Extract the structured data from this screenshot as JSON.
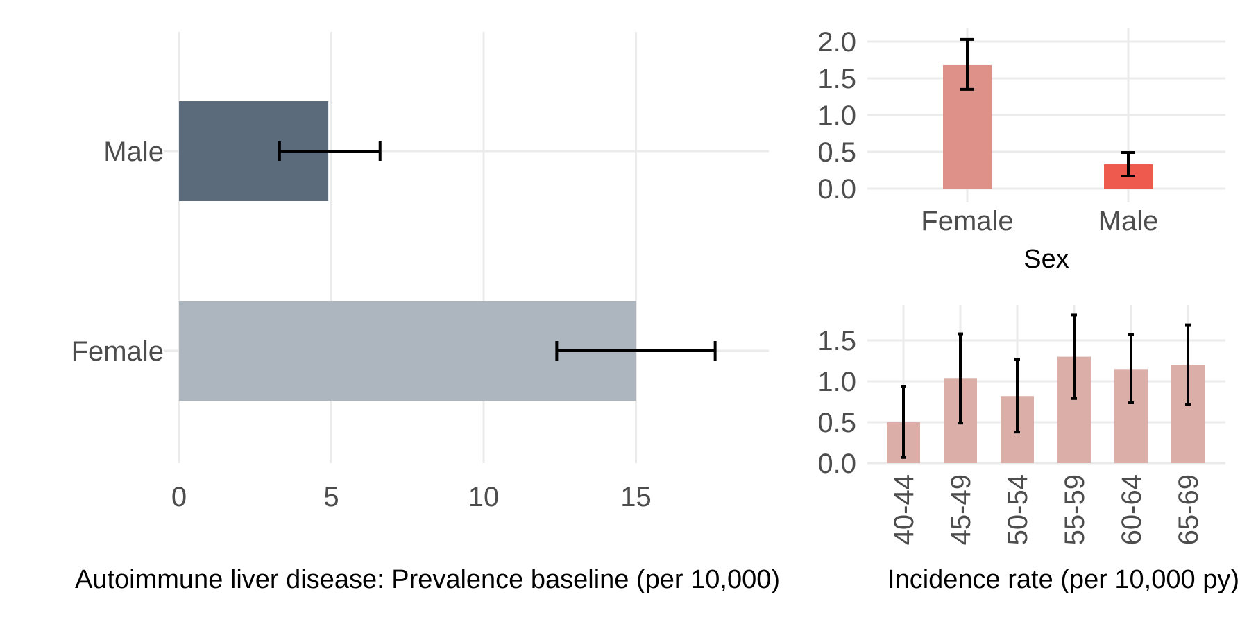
{
  "chart_data": [
    {
      "type": "bar",
      "orientation": "horizontal",
      "title": "",
      "xlabel": "Autoimmune liver disease: Prevalence baseline (per 10,000)",
      "ylabel": "",
      "categories": [
        "Male",
        "Female"
      ],
      "values": [
        4.9,
        15.0
      ],
      "error_low": [
        3.3,
        12.4
      ],
      "error_high": [
        6.6,
        17.6
      ],
      "colors": [
        "#5b6b7b",
        "#adb5bf"
      ],
      "xlim": [
        0,
        18.2
      ],
      "xticks": [
        0,
        5,
        10,
        15
      ],
      "xtick_labels": [
        "0",
        "5",
        "10",
        "15"
      ]
    },
    {
      "type": "bar",
      "title": "",
      "xlabel": "Sex",
      "ylabel": "",
      "categories": [
        "Female",
        "Male"
      ],
      "values": [
        1.68,
        0.33
      ],
      "error_low": [
        1.35,
        0.17
      ],
      "error_high": [
        2.03,
        0.49
      ],
      "colors": [
        "#dd9189",
        "#ee5a4e"
      ],
      "ylim": [
        0,
        2.0
      ],
      "yticks": [
        0,
        0.5,
        1.0,
        1.5,
        2.0
      ],
      "ytick_labels": [
        "0.0",
        "0.5",
        "1.0",
        "1.5",
        "2.0"
      ]
    },
    {
      "type": "bar",
      "title": "",
      "xlabel": "Incidence rate (per 10,000 py)",
      "ylabel": "",
      "categories": [
        "40-44",
        "45-49",
        "50-54",
        "55-59",
        "60-64",
        "65-69"
      ],
      "values": [
        0.5,
        1.04,
        0.82,
        1.3,
        1.15,
        1.2
      ],
      "error_low": [
        0.07,
        0.49,
        0.38,
        0.79,
        0.74,
        0.72
      ],
      "error_high": [
        0.94,
        1.58,
        1.27,
        1.81,
        1.57,
        1.69
      ],
      "colors": [
        "#dcaea8"
      ],
      "ylim": [
        0,
        1.8
      ],
      "yticks": [
        0,
        0.5,
        1.0,
        1.5
      ],
      "ytick_labels": [
        "0.0",
        "0.5",
        "1.0",
        "1.5"
      ]
    }
  ]
}
